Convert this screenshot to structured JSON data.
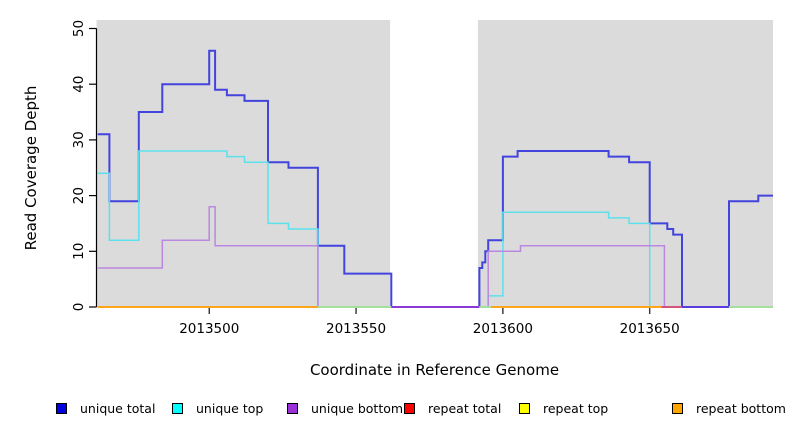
{
  "chart_data": {
    "type": "line",
    "subtype": "step-coverage",
    "title": "",
    "xlabel": "Coordinate in Reference Genome",
    "ylabel": "Read Coverage Depth",
    "xlim": [
      2013461.6,
      2013692
    ],
    "ylim": [
      0,
      50
    ],
    "x_ticks": [
      "2013500",
      "2013550",
      "2013600",
      "2013650"
    ],
    "x_tick_values": [
      2013500,
      2013550,
      2013600,
      2013650
    ],
    "y_ticks": [
      "0",
      "10",
      "20",
      "30",
      "40",
      "50"
    ],
    "y_tick_values": [
      0,
      10,
      20,
      30,
      40,
      50
    ],
    "grid": false,
    "plot_bg_color": "#dbdbdb",
    "background_gap_x": [
      2013561.6,
      2013591.5
    ],
    "series": [
      {
        "name": "unique total",
        "color": "#4343dd",
        "width": 2,
        "points": [
          [
            2013462,
            31
          ],
          [
            2013466,
            19
          ],
          [
            2013476,
            35
          ],
          [
            2013484,
            40
          ],
          [
            2013500,
            46
          ],
          [
            2013502,
            39
          ],
          [
            2013506,
            38
          ],
          [
            2013512,
            37
          ],
          [
            2013520,
            26
          ],
          [
            2013527,
            25
          ],
          [
            2013537,
            11
          ],
          [
            2013546,
            6
          ],
          [
            2013562,
            0
          ],
          [
            2013592,
            7
          ],
          [
            2013593,
            8
          ],
          [
            2013594,
            10
          ],
          [
            2013595,
            12
          ],
          [
            2013600,
            27
          ],
          [
            2013605,
            28
          ],
          [
            2013636,
            27
          ],
          [
            2013643,
            26
          ],
          [
            2013650,
            15
          ],
          [
            2013656,
            14
          ],
          [
            2013658,
            13
          ],
          [
            2013661,
            0
          ],
          [
            2013677,
            19
          ],
          [
            2013687,
            20
          ],
          [
            2013692,
            20
          ]
        ]
      },
      {
        "name": "unique top",
        "color": "#5ce1ec",
        "width": 1.5,
        "points": [
          [
            2013462,
            24
          ],
          [
            2013466,
            12
          ],
          [
            2013476,
            28
          ],
          [
            2013506,
            27
          ],
          [
            2013512,
            26
          ],
          [
            2013520,
            15
          ],
          [
            2013527,
            14
          ],
          [
            2013537,
            0
          ],
          [
            2013595,
            2
          ],
          [
            2013600,
            17
          ],
          [
            2013636,
            16
          ],
          [
            2013643,
            15
          ],
          [
            2013650,
            0
          ],
          [
            2013692,
            0
          ]
        ]
      },
      {
        "name": "unique bottom",
        "color": "#bb87e0",
        "width": 1.5,
        "points": [
          [
            2013462,
            7
          ],
          [
            2013484,
            12
          ],
          [
            2013500,
            18
          ],
          [
            2013502,
            11
          ],
          [
            2013537,
            0
          ],
          [
            2013595,
            10
          ],
          [
            2013606,
            11
          ],
          [
            2013655,
            0
          ],
          [
            2013692,
            0
          ]
        ]
      },
      {
        "name": "repeat total",
        "color": "#cc2222",
        "width": 1.5,
        "points": [
          [
            2013462,
            0
          ],
          [
            2013692,
            0
          ]
        ]
      },
      {
        "name": "repeat top",
        "color": "#ffff33",
        "width": 1.5,
        "points": [
          [
            2013462,
            0
          ],
          [
            2013692,
            0
          ]
        ]
      },
      {
        "name": "repeat bottom",
        "color": "#ffa51c",
        "width": 2,
        "points": [
          [
            2013462,
            0
          ],
          [
            2013692,
            0
          ]
        ]
      }
    ],
    "zero_line_segments": [
      {
        "x1": 2013462,
        "x2": 2013537,
        "color": "#ffa51c"
      },
      {
        "x1": 2013537,
        "x2": 2013562,
        "color": "#a6de9e"
      },
      {
        "x1": 2013562,
        "x2": 2013592,
        "color": "#8c39d9"
      },
      {
        "x1": 2013592,
        "x2": 2013596,
        "color": "#a6de9e"
      },
      {
        "x1": 2013596,
        "x2": 2013654,
        "color": "#ffa51c"
      },
      {
        "x1": 2013654,
        "x2": 2013661,
        "color": "#d4547a"
      },
      {
        "x1": 2013661,
        "x2": 2013677,
        "color": "#5a3be0"
      },
      {
        "x1": 2013677,
        "x2": 2013692,
        "color": "#a6de9e"
      }
    ]
  },
  "legend": {
    "items": [
      {
        "label": "unique total",
        "color": "#0000e0"
      },
      {
        "label": "unique top",
        "color": "#00ffff"
      },
      {
        "label": "unique bottom",
        "color": "#9b30d9"
      },
      {
        "label": "repeat total",
        "color": "#ff0000"
      },
      {
        "label": "repeat top",
        "color": "#ffff00"
      },
      {
        "label": "repeat bottom",
        "color": "#ffa500"
      }
    ]
  }
}
